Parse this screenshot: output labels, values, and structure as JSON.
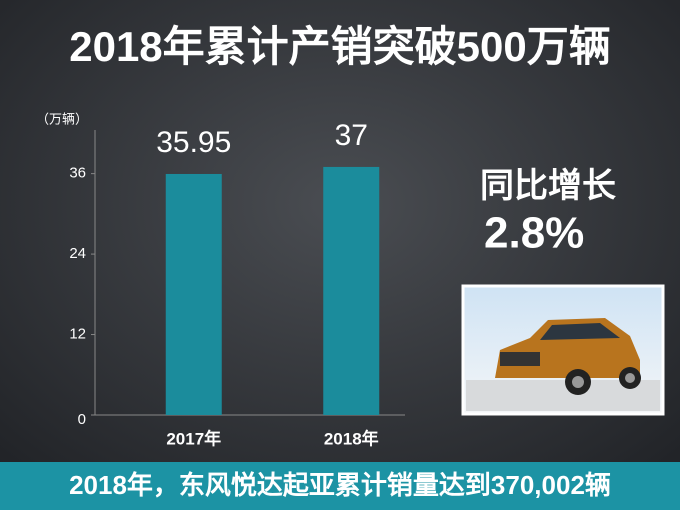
{
  "chart_data": {
    "type": "bar",
    "title": "2018年累计产销突破500万辆",
    "y_unit": "（万辆）",
    "categories": [
      "2017年",
      "2018年"
    ],
    "values": [
      35.95,
      37
    ],
    "color": "#1b8c9c",
    "ylim": [
      0,
      44
    ],
    "yticks": [
      0,
      12,
      24,
      36
    ],
    "annotation": {
      "label": "同比增长",
      "value": "2.8%"
    },
    "caption": "2018年，东风悦达起亚累计销量达到370,002辆"
  }
}
